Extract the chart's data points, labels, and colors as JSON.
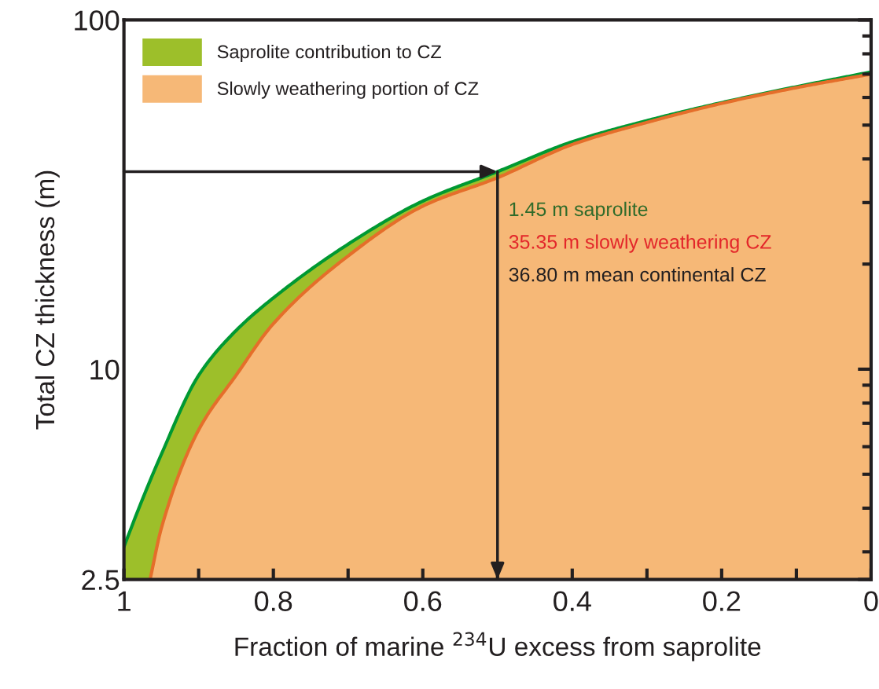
{
  "chart_data": {
    "type": "area",
    "xlabel": "Fraction of marine $^{234}$U excess from saprolite",
    "ylabel": "Total CZ thickness (m)",
    "log": "y",
    "xlim": [
      1,
      0
    ],
    "xticks": [
      1,
      {
        "value": 0.9,
        "label": null
      },
      0.8,
      {
        "value": 0.7,
        "label": null
      },
      0.6,
      {
        "value": 0.5,
        "label": null
      },
      0.4,
      {
        "value": 0.3,
        "label": null
      },
      0.2,
      {
        "value": 0.1,
        "label": null
      },
      0
    ],
    "ylim": [
      2.5,
      100
    ],
    "yticks": [
      2.5,
      10,
      100
    ],
    "grid": false,
    "legend": "top left",
    "series": [
      {
        "name": "Saprolite contribution to CZ",
        "color": "#9dbf2a",
        "x": [
          1,
          0.98,
          0.95,
          0.9,
          0.85,
          0.8,
          0.7,
          0.6,
          0.5,
          0.4,
          0.3,
          0.2,
          0.1,
          0
        ],
        "values": [
          3.1,
          4.0,
          5.7,
          9.6,
          12.9,
          16,
          22.8,
          30.3,
          36.8,
          44.8,
          51.5,
          58,
          64.4,
          71
        ]
      },
      {
        "name": "Slowly weathering portion of CZ",
        "color": "#f6b877",
        "x": [
          0.965,
          0.95,
          0.9,
          0.85,
          0.8,
          0.7,
          0.6,
          0.5,
          0.4,
          0.3,
          0.2,
          0.1,
          0
        ],
        "values": [
          2.5,
          3.5,
          6.7,
          9.6,
          13.5,
          21.1,
          29.3,
          35.35,
          44,
          50.9,
          57.7,
          64,
          70
        ]
      }
    ],
    "annotations": [
      {
        "text": "1.45 m saprolite",
        "x": 0.5,
        "y": 36.8
      },
      "35.35 m slowly weathering CZ",
      "36.80 m mean continental CZ"
    ]
  }
}
